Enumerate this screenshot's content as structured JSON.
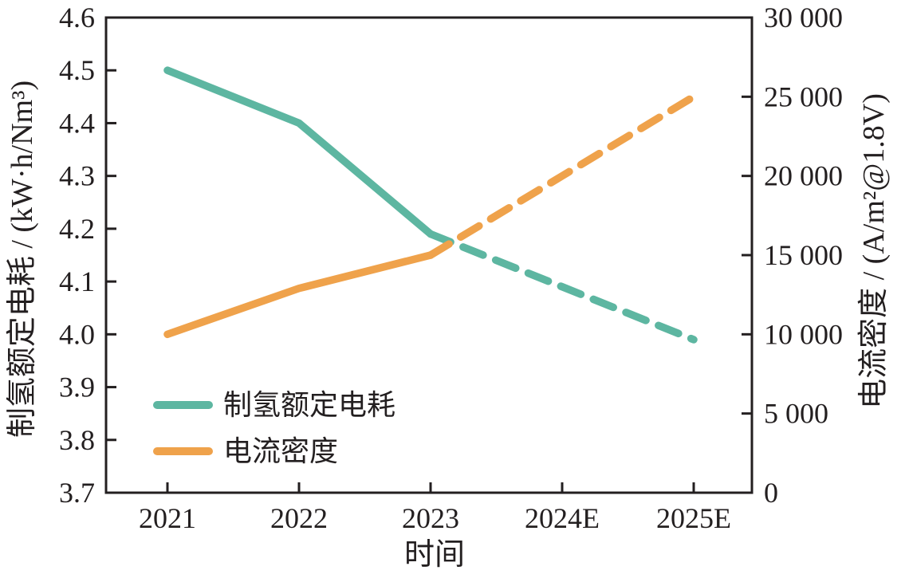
{
  "chart_data": {
    "type": "line",
    "title": "",
    "xlabel": "时间",
    "ylabel_left": "制氢额定电耗 / (kW·h/Nm³)",
    "ylabel_right": "电流密度 / (A/m²@1.8V)",
    "categories": [
      "2021",
      "2022",
      "2023",
      "2024E",
      "2025E"
    ],
    "left_axis": {
      "min": 3.7,
      "max": 4.6,
      "tick_labels": [
        "4.6",
        "4.5",
        "4.4",
        "4.3",
        "4.2",
        "4.1",
        "4.0",
        "3.9",
        "3.8",
        "3.7"
      ]
    },
    "right_axis": {
      "min": 0,
      "max": 30000,
      "tick_labels": [
        "30 000",
        "25 000",
        "20 000",
        "15 000",
        "10 000",
        "5 000",
        "0"
      ]
    },
    "series": [
      {
        "name": "制氢额定电耗",
        "axis": "left",
        "color": "#5db6a1",
        "line_style": "solid-then-dashed",
        "dashed_from_index": 2,
        "values": [
          4.5,
          4.4,
          4.19,
          4.09,
          3.99
        ]
      },
      {
        "name": "电流密度",
        "axis": "right",
        "color": "#efa24b",
        "line_style": "solid-then-dashed",
        "dashed_from_index": 2,
        "values": [
          10000,
          12900,
          15000,
          20000,
          25000
        ]
      }
    ],
    "legend_position": "lower-left-inside",
    "grid": false,
    "frame_color": "#231f20",
    "text_color": "#231f20"
  }
}
